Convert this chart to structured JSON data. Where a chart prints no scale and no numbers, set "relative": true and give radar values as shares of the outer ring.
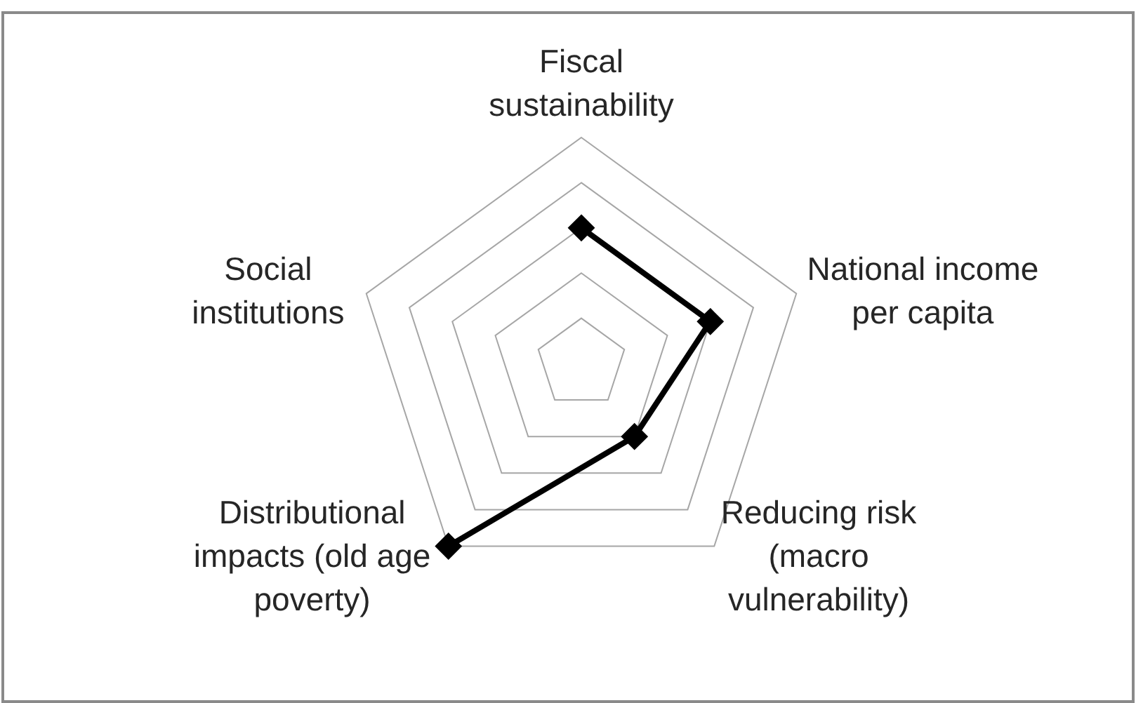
{
  "chart_data": {
    "type": "radar",
    "categories": [
      "Fiscal\nsustainability",
      "National income\nper capita",
      "Reducing risk\n(macro\nvulnerability)",
      "Distributional\nimpacts (old age\npoverty)",
      "Social\ninstitutions"
    ],
    "series": [
      {
        "color": "#000000",
        "values": [
          0.6,
          0.6,
          0.4,
          1,
          null
        ]
      }
    ],
    "relative": true,
    "grid": true,
    "marker": "diamond",
    "line_style": "solid"
  }
}
